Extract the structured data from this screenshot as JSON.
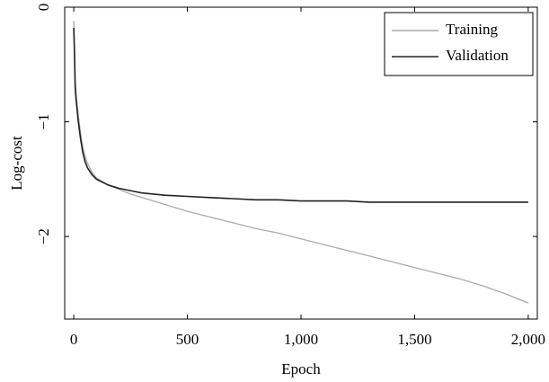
{
  "chart_data": {
    "type": "line",
    "xlabel": "Epoch",
    "ylabel": "Log-cost",
    "xlim": [
      -40,
      2040
    ],
    "ylim": [
      -2.72,
      0.0
    ],
    "xticks": [
      0,
      500,
      1000,
      1500,
      2000
    ],
    "xtick_labels": [
      "0",
      "500",
      "1,000",
      "1,500",
      "2,000"
    ],
    "yticks": [
      0,
      -1,
      -2
    ],
    "ytick_labels": [
      "0",
      "−1",
      "−2"
    ],
    "grid": false,
    "legend_position": "top-right",
    "series": [
      {
        "name": "Training",
        "color": "#aaaaaa",
        "x": [
          0,
          3,
          6,
          10,
          15,
          20,
          30,
          40,
          50,
          60,
          80,
          100,
          150,
          200,
          250,
          300,
          400,
          500,
          600,
          700,
          800,
          900,
          1000,
          1100,
          1200,
          1300,
          1400,
          1500,
          1600,
          1700,
          1800,
          1900,
          2000
        ],
        "y": [
          -0.12,
          -0.35,
          -0.62,
          -0.75,
          -0.85,
          -0.95,
          -1.1,
          -1.22,
          -1.3,
          -1.36,
          -1.44,
          -1.49,
          -1.55,
          -1.59,
          -1.63,
          -1.66,
          -1.72,
          -1.78,
          -1.83,
          -1.88,
          -1.93,
          -1.97,
          -2.02,
          -2.07,
          -2.12,
          -2.17,
          -2.22,
          -2.27,
          -2.32,
          -2.37,
          -2.43,
          -2.5,
          -2.58
        ]
      },
      {
        "name": "Validation",
        "color": "#222222",
        "x": [
          0,
          3,
          6,
          10,
          15,
          20,
          30,
          40,
          50,
          60,
          80,
          100,
          150,
          200,
          250,
          300,
          400,
          500,
          600,
          700,
          800,
          900,
          1000,
          1100,
          1200,
          1300,
          1400,
          1500,
          1600,
          1700,
          1800,
          1900,
          2000
        ],
        "y": [
          -0.18,
          -0.4,
          -0.68,
          -0.8,
          -0.9,
          -1.0,
          -1.15,
          -1.27,
          -1.35,
          -1.4,
          -1.46,
          -1.5,
          -1.55,
          -1.58,
          -1.6,
          -1.62,
          -1.64,
          -1.65,
          -1.66,
          -1.67,
          -1.68,
          -1.68,
          -1.69,
          -1.69,
          -1.69,
          -1.7,
          -1.7,
          -1.7,
          -1.7,
          -1.7,
          -1.7,
          -1.7,
          -1.7
        ]
      }
    ]
  }
}
